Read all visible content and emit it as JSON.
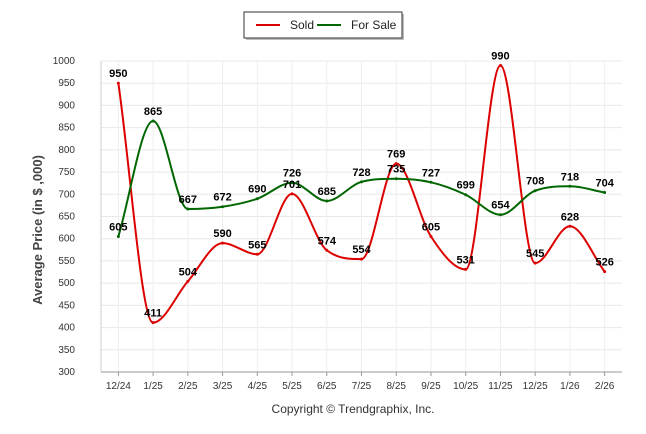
{
  "chart_data": {
    "type": "line",
    "title": "",
    "xlabel": "",
    "ylabel": "Average Price (in $ ,000)",
    "ylim": [
      300,
      1000
    ],
    "yticks": [
      300,
      350,
      400,
      450,
      500,
      550,
      600,
      650,
      700,
      750,
      800,
      850,
      900,
      950,
      1000
    ],
    "categories": [
      "12/24",
      "1/25",
      "2/25",
      "3/25",
      "4/25",
      "5/25",
      "6/25",
      "7/25",
      "8/25",
      "9/25",
      "10/25",
      "11/25",
      "12/25",
      "1/26",
      "2/26"
    ],
    "series": [
      {
        "name": "Sold",
        "color": "#dd0000",
        "values": [
          950,
          411,
          504,
          590,
          565,
          701,
          574,
          554,
          769,
          605,
          531,
          990,
          545,
          628,
          526
        ]
      },
      {
        "name": "For Sale",
        "color": "#006600",
        "values": [
          605,
          865,
          667,
          672,
          690,
          726,
          685,
          728,
          735,
          727,
          699,
          654,
          708,
          718,
          704
        ]
      }
    ],
    "legend_position": "top-center",
    "grid": true
  },
  "footer": {
    "copyright": "Copyright © Trendgraphix, Inc."
  }
}
